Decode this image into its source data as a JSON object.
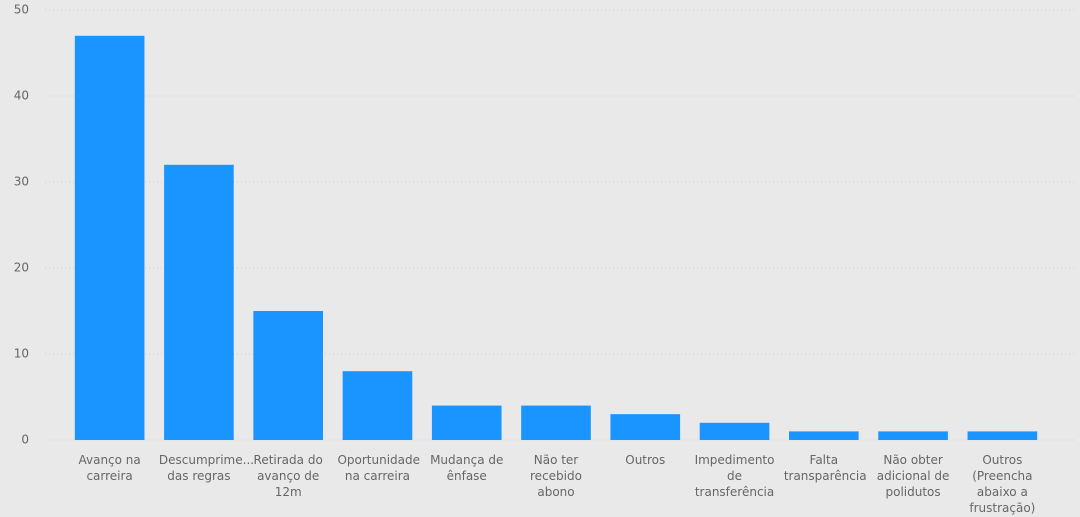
{
  "chart_data": {
    "type": "bar",
    "categories": [
      "Avanço na carreira",
      "Descumprime... das regras",
      "Retirada do avanço de 12m",
      "Oportunidade na carreira",
      "Mudança de ênfase",
      "Não ter recebido abono",
      "Outros",
      "Impedimento de transferência",
      "Falta transparência",
      "Não obter adicional de polidutos",
      "Outros (Preencha abaixo a frustração)"
    ],
    "values": [
      47,
      32,
      15,
      8,
      4,
      4,
      3,
      2,
      1,
      1,
      1
    ],
    "color": "#1a94ff",
    "ylim": [
      0,
      50
    ],
    "yticks": [
      0,
      10,
      20,
      30,
      40,
      50
    ],
    "grid": true
  }
}
